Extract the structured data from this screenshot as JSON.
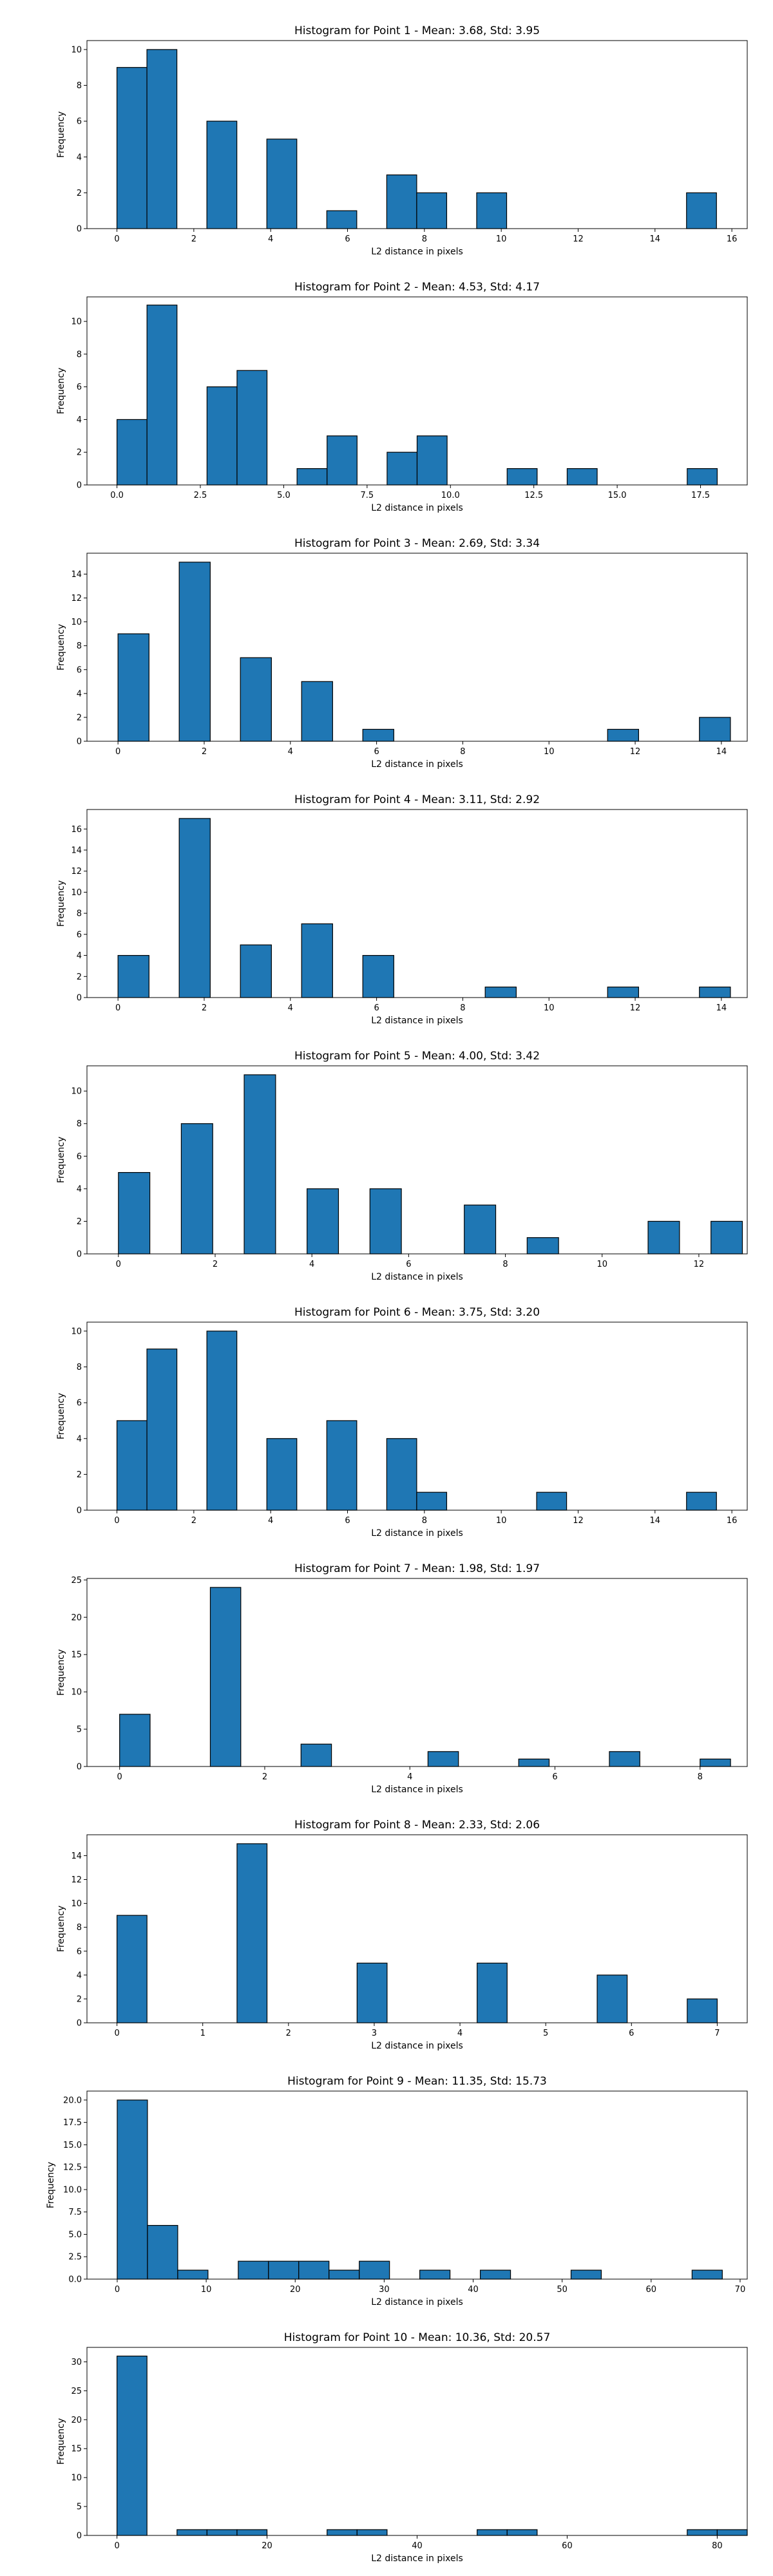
{
  "figure": {
    "bar_color": "#1f77b4",
    "edge_color": "#000000",
    "background": "#ffffff"
  },
  "chart_data": [
    {
      "type": "bar",
      "title": "Histogram for Point 1 - Mean: 3.68, Std: 3.95",
      "xlabel": "L2 distance in pixels",
      "ylabel": "Frequency",
      "xlim": [
        -0.78,
        16.4
      ],
      "ylim": [
        0,
        10.5
      ],
      "xticks": [
        0,
        2,
        4,
        6,
        8,
        10,
        12,
        14,
        16
      ],
      "xtick_labels": [
        "0",
        "2",
        "4",
        "6",
        "8",
        "10",
        "12",
        "14",
        "16"
      ],
      "yticks": [
        0,
        2,
        4,
        6,
        8,
        10
      ],
      "ytick_labels": [
        "0",
        "2",
        "4",
        "6",
        "8",
        "10"
      ],
      "bin_width": 0.78,
      "bins": [
        {
          "x": 0.0,
          "value": 9
        },
        {
          "x": 0.78,
          "value": 10
        },
        {
          "x": 2.34,
          "value": 6
        },
        {
          "x": 3.9,
          "value": 5
        },
        {
          "x": 5.46,
          "value": 1
        },
        {
          "x": 7.02,
          "value": 3
        },
        {
          "x": 7.8,
          "value": 2
        },
        {
          "x": 9.36,
          "value": 2
        },
        {
          "x": 14.82,
          "value": 2
        }
      ]
    },
    {
      "type": "bar",
      "title": "Histogram for Point 2 - Mean: 4.53, Std: 4.17",
      "xlabel": "L2 distance in pixels",
      "ylabel": "Frequency",
      "xlim": [
        -0.9,
        18.9
      ],
      "ylim": [
        0,
        11.5
      ],
      "xticks": [
        0,
        2.5,
        5,
        7.5,
        10,
        12.5,
        15,
        17.5
      ],
      "xtick_labels": [
        "0.0",
        "2.5",
        "5.0",
        "7.5",
        "10.0",
        "12.5",
        "15.0",
        "17.5"
      ],
      "yticks": [
        0,
        2,
        4,
        6,
        8,
        10
      ],
      "ytick_labels": [
        "0",
        "2",
        "4",
        "6",
        "8",
        "10"
      ],
      "bin_width": 0.9,
      "bins": [
        {
          "x": 0.0,
          "value": 4
        },
        {
          "x": 0.9,
          "value": 11
        },
        {
          "x": 2.7,
          "value": 6
        },
        {
          "x": 3.6,
          "value": 7
        },
        {
          "x": 5.4,
          "value": 1
        },
        {
          "x": 6.3,
          "value": 3
        },
        {
          "x": 8.1,
          "value": 2
        },
        {
          "x": 9.0,
          "value": 3
        },
        {
          "x": 11.7,
          "value": 1
        },
        {
          "x": 13.5,
          "value": 1
        },
        {
          "x": 17.1,
          "value": 1
        }
      ]
    },
    {
      "type": "bar",
      "title": "Histogram for Point 3 - Mean: 2.69, Std: 3.34",
      "xlabel": "L2 distance in pixels",
      "ylabel": "Frequency",
      "xlim": [
        -0.72,
        14.6
      ],
      "ylim": [
        0,
        15.75
      ],
      "xticks": [
        0,
        2,
        4,
        6,
        8,
        10,
        12,
        14
      ],
      "xtick_labels": [
        "0",
        "2",
        "4",
        "6",
        "8",
        "10",
        "12",
        "14"
      ],
      "yticks": [
        0,
        2,
        4,
        6,
        8,
        10,
        12,
        14
      ],
      "ytick_labels": [
        "0",
        "2",
        "4",
        "6",
        "8",
        "10",
        "12",
        "14"
      ],
      "bin_width": 0.72,
      "bins": [
        {
          "x": 0.0,
          "value": 9
        },
        {
          "x": 1.42,
          "value": 15
        },
        {
          "x": 2.84,
          "value": 7
        },
        {
          "x": 4.26,
          "value": 5
        },
        {
          "x": 5.68,
          "value": 1
        },
        {
          "x": 11.36,
          "value": 1
        },
        {
          "x": 13.49,
          "value": 2
        }
      ]
    },
    {
      "type": "bar",
      "title": "Histogram for Point 4 - Mean: 3.11, Std: 2.92",
      "xlabel": "L2 distance in pixels",
      "ylabel": "Frequency",
      "xlim": [
        -0.72,
        14.6
      ],
      "ylim": [
        0,
        17.85
      ],
      "xticks": [
        0,
        2,
        4,
        6,
        8,
        10,
        12,
        14
      ],
      "xtick_labels": [
        "0",
        "2",
        "4",
        "6",
        "8",
        "10",
        "12",
        "14"
      ],
      "yticks": [
        0,
        2,
        4,
        6,
        8,
        10,
        12,
        14,
        16
      ],
      "ytick_labels": [
        "0",
        "2",
        "4",
        "6",
        "8",
        "10",
        "12",
        "14",
        "16"
      ],
      "bin_width": 0.72,
      "bins": [
        {
          "x": 0.0,
          "value": 4
        },
        {
          "x": 1.42,
          "value": 17
        },
        {
          "x": 2.84,
          "value": 5
        },
        {
          "x": 4.26,
          "value": 7
        },
        {
          "x": 5.68,
          "value": 4
        },
        {
          "x": 8.52,
          "value": 1
        },
        {
          "x": 11.36,
          "value": 1
        },
        {
          "x": 13.49,
          "value": 1
        }
      ]
    },
    {
      "type": "bar",
      "title": "Histogram for Point 5 - Mean: 4.00, Std: 3.42",
      "xlabel": "L2 distance in pixels",
      "ylabel": "Frequency",
      "xlim": [
        -0.65,
        13.0
      ],
      "ylim": [
        0,
        11.55
      ],
      "xticks": [
        0,
        2,
        4,
        6,
        8,
        10,
        12
      ],
      "xtick_labels": [
        "0",
        "2",
        "4",
        "6",
        "8",
        "10",
        "12"
      ],
      "yticks": [
        0,
        2,
        4,
        6,
        8,
        10
      ],
      "ytick_labels": [
        "0",
        "2",
        "4",
        "6",
        "8",
        "10"
      ],
      "bin_width": 0.65,
      "bins": [
        {
          "x": 0.0,
          "value": 5
        },
        {
          "x": 1.3,
          "value": 8
        },
        {
          "x": 2.6,
          "value": 11
        },
        {
          "x": 3.9,
          "value": 4
        },
        {
          "x": 5.2,
          "value": 4
        },
        {
          "x": 7.15,
          "value": 3
        },
        {
          "x": 8.45,
          "value": 1
        },
        {
          "x": 10.95,
          "value": 2
        },
        {
          "x": 12.25,
          "value": 2
        }
      ]
    },
    {
      "type": "bar",
      "title": "Histogram for Point 6 - Mean: 3.75, Std: 3.20",
      "xlabel": "L2 distance in pixels",
      "ylabel": "Frequency",
      "xlim": [
        -0.78,
        16.4
      ],
      "ylim": [
        0,
        10.5
      ],
      "xticks": [
        0,
        2,
        4,
        6,
        8,
        10,
        12,
        14,
        16
      ],
      "xtick_labels": [
        "0",
        "2",
        "4",
        "6",
        "8",
        "10",
        "12",
        "14",
        "16"
      ],
      "yticks": [
        0,
        2,
        4,
        6,
        8,
        10
      ],
      "ytick_labels": [
        "0",
        "2",
        "4",
        "6",
        "8",
        "10"
      ],
      "bin_width": 0.78,
      "bins": [
        {
          "x": 0.0,
          "value": 5
        },
        {
          "x": 0.78,
          "value": 9
        },
        {
          "x": 2.34,
          "value": 10
        },
        {
          "x": 3.9,
          "value": 4
        },
        {
          "x": 5.46,
          "value": 5
        },
        {
          "x": 7.02,
          "value": 4
        },
        {
          "x": 7.8,
          "value": 1
        },
        {
          "x": 10.92,
          "value": 1
        },
        {
          "x": 14.82,
          "value": 1
        }
      ]
    },
    {
      "type": "bar",
      "title": "Histogram for Point 7 - Mean: 1.98, Std: 1.97",
      "xlabel": "L2 distance in pixels",
      "ylabel": "Frequency",
      "xlim": [
        -0.45,
        8.65
      ],
      "ylim": [
        0,
        25.2
      ],
      "xticks": [
        0,
        2,
        4,
        6,
        8
      ],
      "xtick_labels": [
        "0",
        "2",
        "4",
        "6",
        "8"
      ],
      "yticks": [
        0,
        5,
        10,
        15,
        20,
        25
      ],
      "ytick_labels": [
        "0",
        "5",
        "10",
        "15",
        "20",
        "25"
      ],
      "bin_width": 0.42,
      "bins": [
        {
          "x": 0.0,
          "value": 7
        },
        {
          "x": 1.25,
          "value": 24
        },
        {
          "x": 2.5,
          "value": 3
        },
        {
          "x": 4.25,
          "value": 2
        },
        {
          "x": 5.5,
          "value": 1
        },
        {
          "x": 6.75,
          "value": 2
        },
        {
          "x": 8.0,
          "value": 1
        }
      ]
    },
    {
      "type": "bar",
      "title": "Histogram for Point 8 - Mean: 2.33, Std: 2.06",
      "xlabel": "L2 distance in pixels",
      "ylabel": "Frequency",
      "xlim": [
        -0.35,
        7.35
      ],
      "ylim": [
        0,
        15.75
      ],
      "xticks": [
        0,
        1,
        2,
        3,
        4,
        5,
        6,
        7
      ],
      "xtick_labels": [
        "0",
        "1",
        "2",
        "3",
        "4",
        "5",
        "6",
        "7"
      ],
      "yticks": [
        0,
        2,
        4,
        6,
        8,
        10,
        12,
        14
      ],
      "ytick_labels": [
        "0",
        "2",
        "4",
        "6",
        "8",
        "10",
        "12",
        "14"
      ],
      "bin_width": 0.35,
      "bins": [
        {
          "x": 0.0,
          "value": 9
        },
        {
          "x": 1.4,
          "value": 15
        },
        {
          "x": 2.8,
          "value": 5
        },
        {
          "x": 4.2,
          "value": 5
        },
        {
          "x": 5.6,
          "value": 4
        },
        {
          "x": 6.65,
          "value": 2
        }
      ]
    },
    {
      "type": "bar",
      "title": "Histogram for Point 9 - Mean: 11.35, Std: 15.73",
      "xlabel": "L2 distance in pixels",
      "ylabel": "Frequency",
      "xlim": [
        -3.4,
        70.8
      ],
      "ylim": [
        0,
        21
      ],
      "xticks": [
        0,
        10,
        20,
        30,
        40,
        50,
        60,
        70
      ],
      "xtick_labels": [
        "0",
        "10",
        "20",
        "30",
        "40",
        "50",
        "60",
        "70"
      ],
      "yticks": [
        0,
        2.5,
        5,
        7.5,
        10,
        12.5,
        15,
        17.5,
        20
      ],
      "ytick_labels": [
        "0.0",
        "2.5",
        "5.0",
        "7.5",
        "10.0",
        "12.5",
        "15.0",
        "17.5",
        "20.0"
      ],
      "bin_width": 3.4,
      "bins": [
        {
          "x": 0.0,
          "value": 20
        },
        {
          "x": 3.4,
          "value": 6
        },
        {
          "x": 6.8,
          "value": 1
        },
        {
          "x": 13.6,
          "value": 2
        },
        {
          "x": 17.0,
          "value": 2
        },
        {
          "x": 20.4,
          "value": 2
        },
        {
          "x": 23.8,
          "value": 1
        },
        {
          "x": 27.2,
          "value": 2
        },
        {
          "x": 34.0,
          "value": 1
        },
        {
          "x": 40.8,
          "value": 1
        },
        {
          "x": 51.0,
          "value": 1
        },
        {
          "x": 64.6,
          "value": 1
        }
      ]
    },
    {
      "type": "bar",
      "title": "Histogram for Point 10 - Mean: 10.36, Std: 20.57",
      "xlabel": "L2 distance in pixels",
      "ylabel": "Frequency",
      "xlim": [
        -4.0,
        84.0
      ],
      "ylim": [
        0,
        32.5
      ],
      "xticks": [
        0,
        20,
        40,
        60,
        80
      ],
      "xtick_labels": [
        "0",
        "20",
        "40",
        "60",
        "80"
      ],
      "yticks": [
        0,
        5,
        10,
        15,
        20,
        25,
        30
      ],
      "ytick_labels": [
        "0",
        "5",
        "10",
        "15",
        "20",
        "25",
        "30"
      ],
      "bin_width": 4.0,
      "bins": [
        {
          "x": 0.0,
          "value": 31
        },
        {
          "x": 8.0,
          "value": 1
        },
        {
          "x": 12.0,
          "value": 1
        },
        {
          "x": 16.0,
          "value": 1
        },
        {
          "x": 28.0,
          "value": 1
        },
        {
          "x": 32.0,
          "value": 1
        },
        {
          "x": 48.0,
          "value": 1
        },
        {
          "x": 52.0,
          "value": 1
        },
        {
          "x": 76.0,
          "value": 1
        },
        {
          "x": 80.0,
          "value": 1
        }
      ]
    }
  ]
}
